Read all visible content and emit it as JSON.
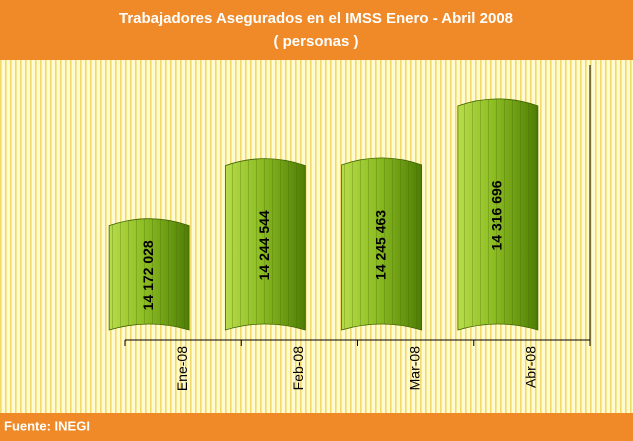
{
  "chart_data": {
    "type": "bar",
    "title": "Trabajadores Asegurados en el IMSS  Enero - Abril 2008",
    "subtitle": "( personas )",
    "source": "Fuente: INEGI",
    "categories": [
      "Ene-08",
      "Feb-08",
      "Mar-08",
      "Abr-08"
    ],
    "values": [
      14172028,
      14244544,
      14245463,
      14316696
    ],
    "value_labels": [
      "14 172 028",
      "14 244 544",
      "14 245 463",
      "14 316 696"
    ],
    "color": "#7fae1a",
    "ylim": [
      14040000,
      14360000
    ]
  }
}
